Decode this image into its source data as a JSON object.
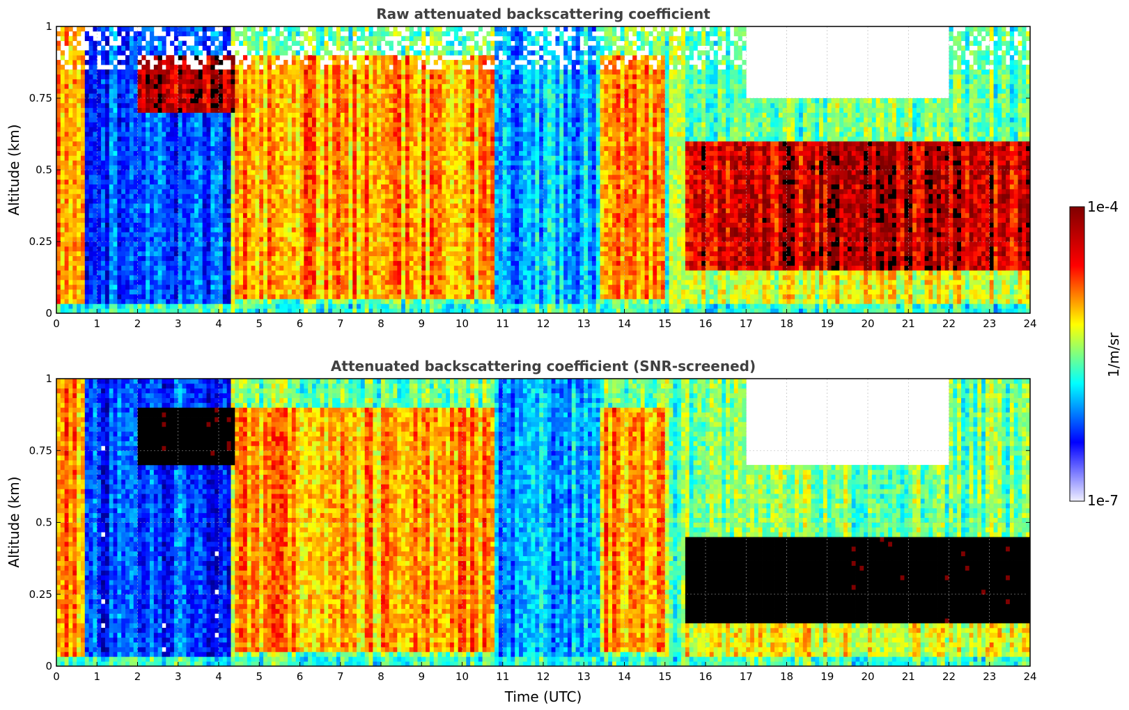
{
  "chart_data": [
    {
      "type": "heatmap",
      "title": "Raw attenuated backscattering coefficient",
      "xlabel": "",
      "ylabel": "Altitude (km)",
      "xlim": [
        0,
        24
      ],
      "ylim": [
        0,
        1
      ],
      "x_ticks": [
        "0",
        "1",
        "2",
        "3",
        "4",
        "5",
        "6",
        "7",
        "8",
        "9",
        "10",
        "11",
        "12",
        "13",
        "14",
        "15",
        "16",
        "17",
        "18",
        "19",
        "20",
        "21",
        "22",
        "23",
        "24"
      ],
      "y_ticks": [
        "0",
        "0.25",
        "0.5",
        "0.75",
        "1"
      ],
      "grid": true,
      "screened": false,
      "features": [
        {
          "time": [
            0.0,
            0.7
          ],
          "altitude": [
            0.0,
            1.0
          ],
          "level": "high"
        },
        {
          "time": [
            0.7,
            4.3
          ],
          "altitude": [
            0.0,
            1.0
          ],
          "level": "low"
        },
        {
          "time": [
            2.0,
            4.6
          ],
          "altitude": [
            0.7,
            0.9
          ],
          "level": "very-high"
        },
        {
          "time": [
            4.4,
            15.0
          ],
          "altitude": [
            0.05,
            0.9
          ],
          "level": "high"
        },
        {
          "time": [
            10.8,
            13.4
          ],
          "altitude": [
            0.0,
            1.0
          ],
          "level": "mixed-low"
        },
        {
          "time": [
            15.5,
            24.0
          ],
          "altitude": [
            0.15,
            0.6
          ],
          "level": "very-high"
        },
        {
          "time": [
            15.5,
            24.0
          ],
          "altitude": [
            0.02,
            0.15
          ],
          "level": "medium"
        },
        {
          "time": [
            17.0,
            22.0
          ],
          "altitude": [
            0.75,
            1.0
          ],
          "level": "clear"
        }
      ]
    },
    {
      "type": "heatmap",
      "title": "Attenuated backscattering coefficient (SNR-screened)",
      "xlabel": "Time (UTC)",
      "ylabel": "Altitude (km)",
      "xlim": [
        0,
        24
      ],
      "ylim": [
        0,
        1
      ],
      "x_ticks": [
        "0",
        "1",
        "2",
        "3",
        "4",
        "5",
        "6",
        "7",
        "8",
        "9",
        "10",
        "11",
        "12",
        "13",
        "14",
        "15",
        "16",
        "17",
        "18",
        "19",
        "20",
        "21",
        "22",
        "23",
        "24"
      ],
      "y_ticks": [
        "0",
        "0.25",
        "0.5",
        "0.75",
        "1"
      ],
      "grid": true,
      "screened": true,
      "features": [
        {
          "time": [
            0.0,
            0.7
          ],
          "altitude": [
            0.0,
            1.0
          ],
          "level": "high"
        },
        {
          "time": [
            0.7,
            4.3
          ],
          "altitude": [
            0.0,
            1.0
          ],
          "level": "low"
        },
        {
          "time": [
            2.0,
            4.6
          ],
          "altitude": [
            0.7,
            0.9
          ],
          "level": "saturated"
        },
        {
          "time": [
            4.4,
            15.0
          ],
          "altitude": [
            0.05,
            0.9
          ],
          "level": "high"
        },
        {
          "time": [
            10.8,
            13.4
          ],
          "altitude": [
            0.0,
            1.0
          ],
          "level": "mixed-low"
        },
        {
          "time": [
            15.5,
            24.0
          ],
          "altitude": [
            0.15,
            0.45
          ],
          "level": "saturated"
        },
        {
          "time": [
            15.5,
            24.0
          ],
          "altitude": [
            0.02,
            0.15
          ],
          "level": "medium"
        },
        {
          "time": [
            17.0,
            22.0
          ],
          "altitude": [
            0.7,
            1.0
          ],
          "level": "clear"
        }
      ]
    }
  ],
  "colorbar": {
    "label": "1/m/sr",
    "min_label": "1e-7",
    "max_label": "1e-4",
    "colormap": "jet",
    "colors": [
      "#f0f0ff",
      "#0000ff",
      "#00ffff",
      "#ffff00",
      "#ff0000",
      "#800000"
    ]
  }
}
